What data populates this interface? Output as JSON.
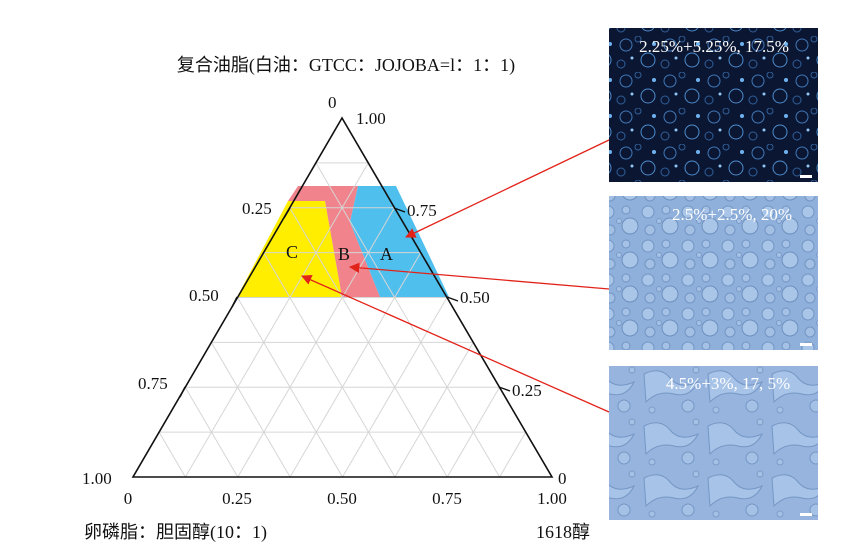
{
  "title": "复合油脂(白油：GTCC：JOJOBA=l：1：1)",
  "corner_labels": {
    "bottom_left": "卵磷脂：胆固醇(10：1)",
    "bottom_right": "1618醇"
  },
  "ticks": {
    "top_vertex_left": "0",
    "top_vertex_right": "1.00",
    "left_edge": [
      "0.25",
      "0.50",
      "0.75",
      "1.00"
    ],
    "right_edge": [
      "0.75",
      "0.50",
      "0.25",
      "0"
    ],
    "bottom": [
      "0",
      "0.25",
      "0.50",
      "0.75",
      "1.00"
    ]
  },
  "regions": [
    {
      "id": "A",
      "label": "A",
      "color": "#4fbfee"
    },
    {
      "id": "B",
      "label": "B",
      "color": "#f0838b"
    },
    {
      "id": "C",
      "label": "C",
      "color": "#ffee00"
    }
  ],
  "arrow_color": "#e2231a",
  "micrographs": [
    {
      "caption": "2.25%+5.25%, 17.5%",
      "target": "A",
      "tone": "dark"
    },
    {
      "caption": "2.5%+2.5%, 20%",
      "target": "B",
      "tone": "light"
    },
    {
      "caption": "4.5%+3%, 17, 5%",
      "target": "C",
      "tone": "light"
    }
  ]
}
